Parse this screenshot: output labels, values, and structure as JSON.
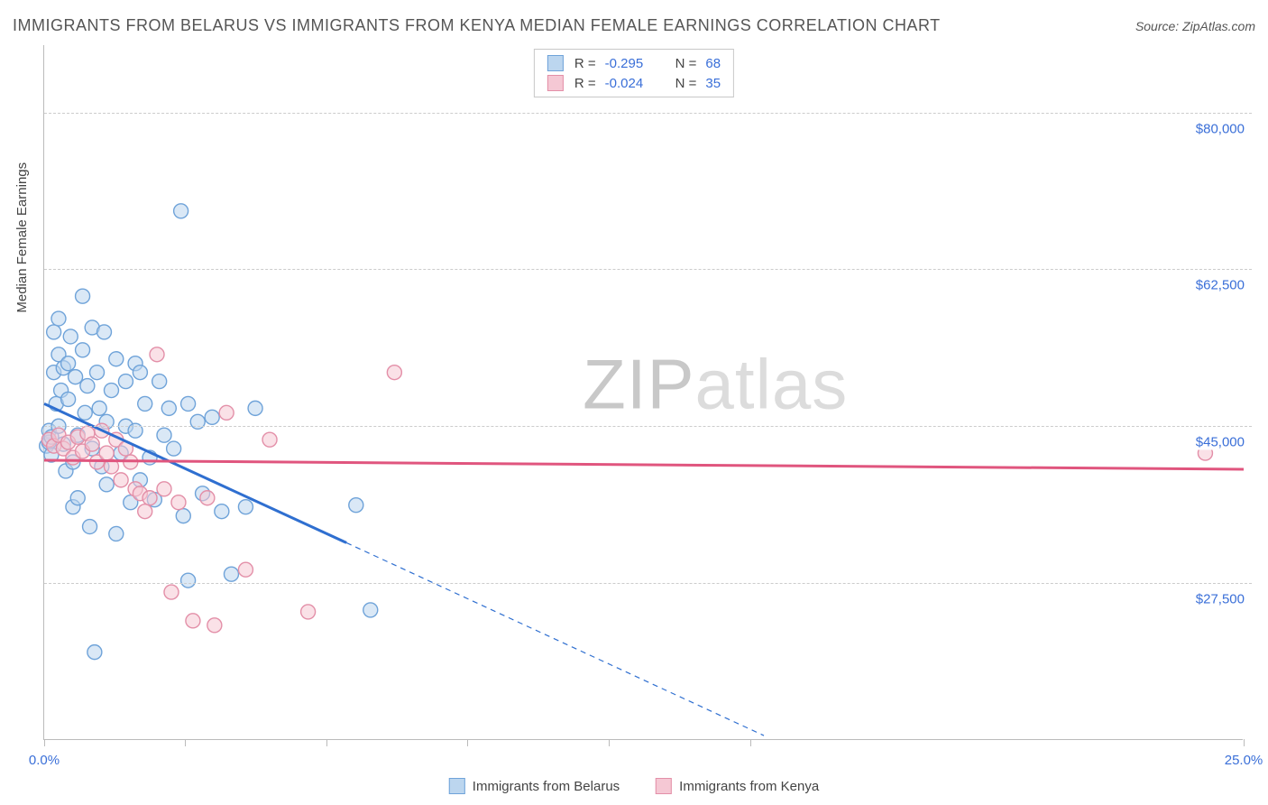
{
  "title": "IMMIGRANTS FROM BELARUS VS IMMIGRANTS FROM KENYA MEDIAN FEMALE EARNINGS CORRELATION CHART",
  "source": "Source: ZipAtlas.com",
  "y_axis_title": "Median Female Earnings",
  "watermark_a": "ZIP",
  "watermark_b": "atlas",
  "chart": {
    "type": "scatter",
    "background_color": "#ffffff",
    "grid_color": "#cccccc",
    "axis_color": "#bbbbbb",
    "tick_label_color": "#3a6fd8",
    "xlim": [
      0.0,
      25.0
    ],
    "ylim": [
      10000,
      87500
    ],
    "y_ticks": [
      27500,
      45000,
      62500,
      80000
    ],
    "y_tick_labels": [
      "$27,500",
      "$45,000",
      "$62,500",
      "$80,000"
    ],
    "x_ticks": [
      0.0,
      2.94,
      5.88,
      8.82,
      11.76,
      14.71,
      25.0
    ],
    "x_tick_labels_shown": {
      "0.0": "0.0%",
      "25.0": "25.0%"
    },
    "marker_radius": 8,
    "marker_stroke_width": 1.4,
    "line_width_solid": 3,
    "line_width_dashed": 1.2,
    "dash_pattern": "6,5"
  },
  "series": [
    {
      "id": "belarus",
      "label": "Immigrants from Belarus",
      "fill": "#bcd6ef",
      "stroke": "#6fa3d9",
      "fill_opacity": 0.55,
      "r_value": "-0.295",
      "n_value": "68",
      "trend": {
        "color": "#2f6fd0",
        "solid": [
          [
            0.0,
            47500
          ],
          [
            6.3,
            32000
          ]
        ],
        "dashed": [
          [
            6.3,
            32000
          ],
          [
            15.0,
            10500
          ]
        ]
      },
      "points": [
        [
          0.05,
          42800
        ],
        [
          0.1,
          44500
        ],
        [
          0.1,
          43200
        ],
        [
          0.15,
          41800
        ],
        [
          0.15,
          43800
        ],
        [
          0.2,
          51000
        ],
        [
          0.2,
          55500
        ],
        [
          0.25,
          47500
        ],
        [
          0.3,
          53000
        ],
        [
          0.3,
          57000
        ],
        [
          0.3,
          45000
        ],
        [
          0.35,
          49000
        ],
        [
          0.4,
          51500
        ],
        [
          0.4,
          43000
        ],
        [
          0.45,
          40000
        ],
        [
          0.5,
          52000
        ],
        [
          0.5,
          48000
        ],
        [
          0.55,
          55000
        ],
        [
          0.6,
          41000
        ],
        [
          0.6,
          36000
        ],
        [
          0.65,
          50500
        ],
        [
          0.7,
          44000
        ],
        [
          0.7,
          37000
        ],
        [
          0.8,
          59500
        ],
        [
          0.8,
          53500
        ],
        [
          0.85,
          46500
        ],
        [
          0.9,
          49500
        ],
        [
          0.95,
          33800
        ],
        [
          1.0,
          56000
        ],
        [
          1.0,
          42500
        ],
        [
          1.05,
          19800
        ],
        [
          1.1,
          51000
        ],
        [
          1.15,
          47000
        ],
        [
          1.2,
          40500
        ],
        [
          1.25,
          55500
        ],
        [
          1.3,
          45500
        ],
        [
          1.3,
          38500
        ],
        [
          1.4,
          49000
        ],
        [
          1.5,
          52500
        ],
        [
          1.5,
          33000
        ],
        [
          1.6,
          42000
        ],
        [
          1.7,
          50000
        ],
        [
          1.7,
          45000
        ],
        [
          1.8,
          36500
        ],
        [
          1.9,
          52000
        ],
        [
          1.9,
          44500
        ],
        [
          2.0,
          51000
        ],
        [
          2.0,
          39000
        ],
        [
          2.1,
          47500
        ],
        [
          2.2,
          41500
        ],
        [
          2.3,
          36800
        ],
        [
          2.4,
          50000
        ],
        [
          2.5,
          44000
        ],
        [
          2.6,
          47000
        ],
        [
          2.7,
          42500
        ],
        [
          2.85,
          69000
        ],
        [
          2.9,
          35000
        ],
        [
          3.0,
          47500
        ],
        [
          3.0,
          27800
        ],
        [
          3.2,
          45500
        ],
        [
          3.3,
          37500
        ],
        [
          3.5,
          46000
        ],
        [
          3.7,
          35500
        ],
        [
          3.9,
          28500
        ],
        [
          4.2,
          36000
        ],
        [
          4.4,
          47000
        ],
        [
          6.5,
          36200
        ],
        [
          6.8,
          24500
        ]
      ]
    },
    {
      "id": "kenya",
      "label": "Immigrants from Kenya",
      "fill": "#f5c8d4",
      "stroke": "#e38fa8",
      "fill_opacity": 0.55,
      "r_value": "-0.024",
      "n_value": "35",
      "trend": {
        "color": "#e0557e",
        "solid": [
          [
            0.0,
            41200
          ],
          [
            25.0,
            40200
          ]
        ],
        "dashed": []
      },
      "points": [
        [
          0.1,
          43500
        ],
        [
          0.2,
          42800
        ],
        [
          0.3,
          44000
        ],
        [
          0.4,
          42500
        ],
        [
          0.5,
          43200
        ],
        [
          0.6,
          41500
        ],
        [
          0.7,
          43800
        ],
        [
          0.8,
          42200
        ],
        [
          0.9,
          44200
        ],
        [
          1.0,
          43000
        ],
        [
          1.1,
          41000
        ],
        [
          1.2,
          44500
        ],
        [
          1.3,
          42000
        ],
        [
          1.4,
          40500
        ],
        [
          1.5,
          43500
        ],
        [
          1.6,
          39000
        ],
        [
          1.7,
          42500
        ],
        [
          1.8,
          41000
        ],
        [
          1.9,
          38000
        ],
        [
          2.0,
          37500
        ],
        [
          2.1,
          35500
        ],
        [
          2.2,
          37000
        ],
        [
          2.35,
          53000
        ],
        [
          2.5,
          38000
        ],
        [
          2.65,
          26500
        ],
        [
          2.8,
          36500
        ],
        [
          3.1,
          23300
        ],
        [
          3.4,
          37000
        ],
        [
          3.55,
          22800
        ],
        [
          3.8,
          46500
        ],
        [
          4.2,
          29000
        ],
        [
          4.7,
          43500
        ],
        [
          5.5,
          24300
        ],
        [
          7.3,
          51000
        ],
        [
          24.2,
          42000
        ]
      ]
    }
  ],
  "legend_top_r_label": "R =",
  "legend_top_n_label": "N ="
}
